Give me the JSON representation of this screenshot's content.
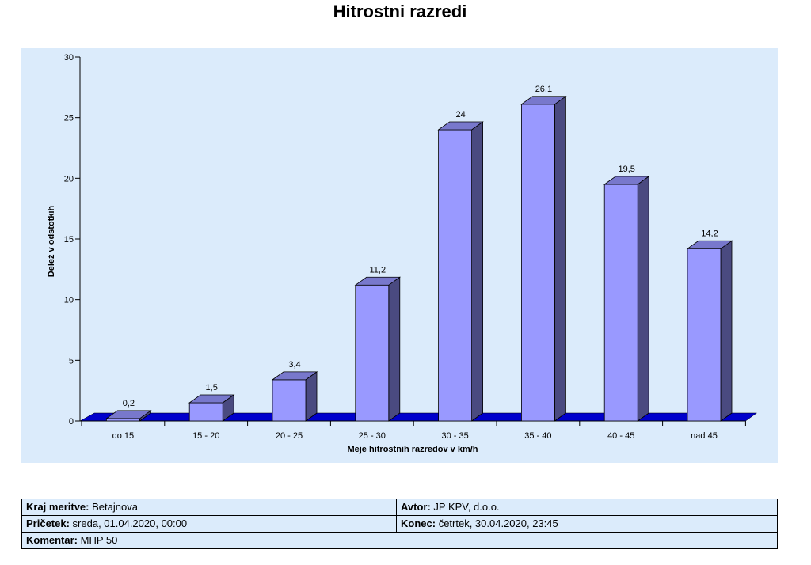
{
  "title": "Hitrostni razredi",
  "chart_data": {
    "type": "bar",
    "title": "Hitrostni razredi",
    "xlabel": "Meje hitrostnih razredov v km/h",
    "ylabel": "Delež v odstotkih",
    "categories": [
      "do 15",
      "15 - 20",
      "20 - 25",
      "25 - 30",
      "30 - 35",
      "35 - 40",
      "40 - 45",
      "nad 45"
    ],
    "values": [
      0.2,
      1.5,
      3.4,
      11.2,
      24,
      26.1,
      19.5,
      14.2
    ],
    "value_labels": [
      "0,2",
      "1,5",
      "3,4",
      "11,2",
      "24",
      "26,1",
      "19,5",
      "14,2"
    ],
    "ylim": [
      0,
      30
    ],
    "yticks": [
      0,
      5,
      10,
      15,
      20,
      25,
      30
    ],
    "grid": false,
    "legend": "none",
    "style": "3d",
    "colors": {
      "bar_front": "#9999ff",
      "bar_side": "#4a4a80",
      "bar_top": "#7878cc",
      "floor": "#0000cc",
      "background": "#dbebfb"
    }
  },
  "info": {
    "location_label": "Kraj meritve:",
    "location_value": "Betajnova",
    "author_label": "Avtor:",
    "author_value": "JP KPV, d.o.o.",
    "start_label": "Pričetek:",
    "start_value": "sreda, 01.04.2020, 00:00",
    "end_label": "Konec:",
    "end_value": "četrtek, 30.04.2020, 23:45",
    "comment_label": "Komentar:",
    "comment_value": "MHP 50"
  }
}
